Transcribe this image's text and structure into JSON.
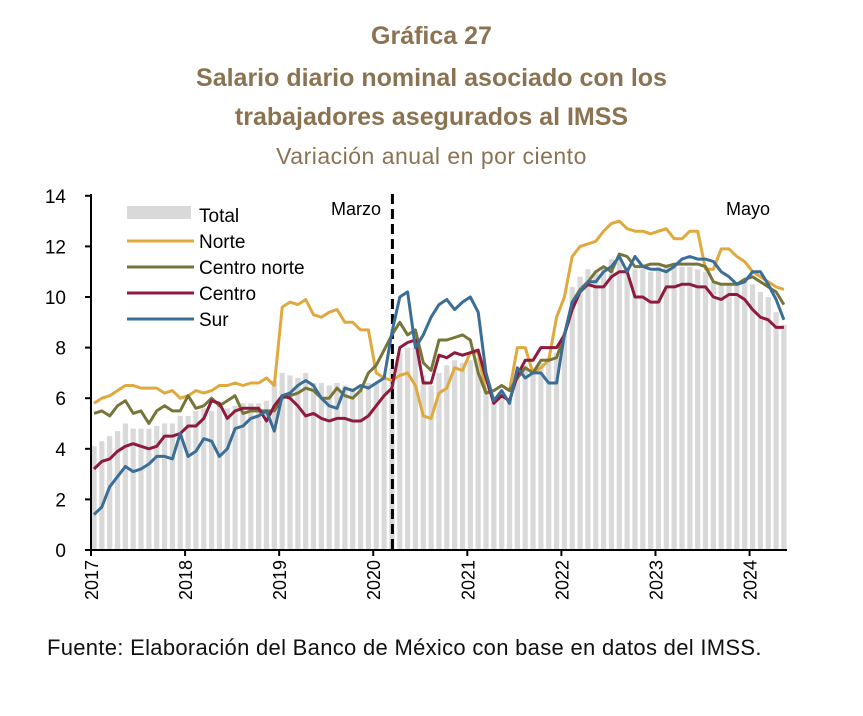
{
  "title": "Gráfica 27",
  "subtitle_line1": "Salario diario nominal asociado con los",
  "subtitle_line2": "trabajadores asegurados al IMSS",
  "units": "Variación anual en por ciento",
  "footer": "Fuente: Elaboración del Banco de México con base en datos del IMSS.",
  "colors": {
    "title": "#8b7352",
    "Total": "#d9d9d9",
    "Norte": "#e0a93d",
    "Centro norte": "#76763a",
    "Centro": "#8e1b3e",
    "Sur": "#3a6e96"
  },
  "chart_data": {
    "type": "bar+line",
    "title": "Salario diario nominal asociado con los trabajadores asegurados al IMSS",
    "subtitle": "Variación anual en por ciento",
    "xlabel": "",
    "ylabel": "",
    "ylim": [
      0,
      14
    ],
    "yticks": [
      0,
      2,
      4,
      6,
      8,
      10,
      12,
      14
    ],
    "xticks": [
      "2017",
      "2018",
      "2019",
      "2020",
      "2021",
      "2022",
      "2023",
      "2024"
    ],
    "x_start": "2017-01",
    "x_end": "2024-05",
    "frequency": "monthly",
    "legend": [
      "Total",
      "Norte",
      "Centro norte",
      "Centro",
      "Sur"
    ],
    "legend_position": "top-left",
    "annotations": [
      {
        "text": "Marzo",
        "at": "2020-03",
        "style": "dashed-vertical-line"
      },
      {
        "text": "Mayo",
        "at": "2024-05"
      }
    ],
    "series": [
      {
        "name": "Total",
        "type": "bar",
        "values": [
          4.1,
          4.3,
          4.5,
          4.7,
          5.0,
          4.8,
          4.8,
          4.8,
          4.9,
          5.0,
          5.0,
          5.3,
          5.3,
          5.5,
          5.6,
          5.5,
          5.7,
          5.6,
          5.7,
          5.8,
          5.8,
          5.8,
          5.9,
          6.7,
          7.0,
          6.9,
          6.8,
          7.0,
          6.6,
          6.6,
          6.5,
          6.6,
          6.5,
          6.4,
          6.4,
          6.6,
          6.6,
          6.9,
          7.2,
          7.8,
          8.0,
          8.0,
          6.9,
          6.5,
          7.0,
          7.3,
          7.5,
          7.4,
          7.5,
          7.6,
          6.4,
          6.0,
          6.2,
          6.0,
          7.0,
          7.3,
          7.2,
          7.4,
          7.6,
          7.8,
          8.6,
          10.4,
          10.8,
          11.1,
          11.0,
          11.2,
          11.5,
          11.6,
          11.2,
          11.1,
          11.1,
          11.0,
          11.2,
          11.3,
          11.2,
          11.2,
          11.2,
          11.1,
          11.0,
          10.6,
          10.5,
          10.5,
          10.6,
          10.7,
          10.5,
          10.2,
          10.0,
          9.4,
          8.9
        ]
      },
      {
        "name": "Norte",
        "type": "line",
        "values": [
          5.8,
          6.0,
          6.1,
          6.3,
          6.5,
          6.5,
          6.4,
          6.4,
          6.4,
          6.2,
          6.3,
          6.0,
          6.1,
          6.3,
          6.2,
          6.3,
          6.5,
          6.5,
          6.6,
          6.5,
          6.6,
          6.6,
          6.8,
          6.5,
          9.6,
          9.8,
          9.7,
          9.9,
          9.3,
          9.2,
          9.4,
          9.5,
          9.0,
          9.0,
          8.7,
          8.7,
          7.0,
          6.8,
          6.7,
          6.9,
          7.0,
          6.5,
          5.3,
          5.2,
          6.2,
          6.4,
          7.2,
          7.1,
          7.8,
          7.8,
          6.2,
          6.3,
          6.5,
          6.3,
          8.0,
          8.0,
          7.0,
          7.2,
          7.5,
          9.2,
          10.0,
          11.6,
          12.0,
          12.1,
          12.2,
          12.6,
          12.9,
          13.0,
          12.7,
          12.6,
          12.6,
          12.5,
          12.6,
          12.7,
          12.3,
          12.3,
          12.6,
          12.6,
          11.1,
          11.1,
          11.9,
          11.9,
          11.6,
          11.4,
          11.0,
          10.8,
          10.6,
          10.4,
          10.3
        ]
      },
      {
        "name": "Centro norte",
        "type": "line",
        "values": [
          5.4,
          5.5,
          5.3,
          5.7,
          5.9,
          5.4,
          5.5,
          5.0,
          5.5,
          5.7,
          5.5,
          5.5,
          6.1,
          5.6,
          5.7,
          6.0,
          5.7,
          5.9,
          6.1,
          5.4,
          5.5,
          5.5,
          5.5,
          5.5,
          6.0,
          6.1,
          6.2,
          6.4,
          6.3,
          6.0,
          6.0,
          6.4,
          6.1,
          6.0,
          6.3,
          7.0,
          7.3,
          7.9,
          8.5,
          9.0,
          8.5,
          8.7,
          7.4,
          7.1,
          8.3,
          8.3,
          8.4,
          8.5,
          8.3,
          7.0,
          6.2,
          6.3,
          6.5,
          6.3,
          6.8,
          7.2,
          7.0,
          7.5,
          7.5,
          7.6,
          8.5,
          9.8,
          10.3,
          10.6,
          11.0,
          11.2,
          11.0,
          11.7,
          11.6,
          11.2,
          11.2,
          11.3,
          11.3,
          11.2,
          11.3,
          11.3,
          11.3,
          11.3,
          11.2,
          10.6,
          10.5,
          10.5,
          10.5,
          10.7,
          10.8,
          10.6,
          10.4,
          10.2,
          9.7
        ]
      },
      {
        "name": "Centro",
        "type": "line",
        "values": [
          3.2,
          3.5,
          3.6,
          3.9,
          4.1,
          4.2,
          4.1,
          4.0,
          4.1,
          4.5,
          4.5,
          4.6,
          4.9,
          4.9,
          5.2,
          5.9,
          5.8,
          5.2,
          5.5,
          5.6,
          5.6,
          5.6,
          5.1,
          5.7,
          6.1,
          6.0,
          5.7,
          5.3,
          5.4,
          5.2,
          5.1,
          5.2,
          5.2,
          5.1,
          5.1,
          5.3,
          5.7,
          6.1,
          6.4,
          8.0,
          8.2,
          8.3,
          6.6,
          6.6,
          7.7,
          7.6,
          7.8,
          7.7,
          7.8,
          7.9,
          6.8,
          5.8,
          6.1,
          5.9,
          6.9,
          7.5,
          7.5,
          8.0,
          8.0,
          8.0,
          8.5,
          9.5,
          10.2,
          10.5,
          10.4,
          10.4,
          10.8,
          11.0,
          11.0,
          10.0,
          10.0,
          9.8,
          9.8,
          10.4,
          10.4,
          10.5,
          10.5,
          10.4,
          10.4,
          10.0,
          9.9,
          10.1,
          10.1,
          9.9,
          9.5,
          9.2,
          9.1,
          8.8,
          8.8
        ]
      },
      {
        "name": "Sur",
        "type": "line",
        "values": [
          1.4,
          1.7,
          2.5,
          2.9,
          3.3,
          3.1,
          3.2,
          3.4,
          3.7,
          3.7,
          3.6,
          4.6,
          3.7,
          3.9,
          4.4,
          4.3,
          3.7,
          4.0,
          4.8,
          4.9,
          5.2,
          5.3,
          5.5,
          4.7,
          6.1,
          6.2,
          6.5,
          6.7,
          6.5,
          6.0,
          5.7,
          5.6,
          6.4,
          6.3,
          6.5,
          6.4,
          6.6,
          6.8,
          8.6,
          10.0,
          10.2,
          8.0,
          8.5,
          9.2,
          9.7,
          9.9,
          9.5,
          9.8,
          10.0,
          9.4,
          7.0,
          5.9,
          6.3,
          5.8,
          7.2,
          6.8,
          7.0,
          7.0,
          6.6,
          6.6,
          8.5,
          9.8,
          10.2,
          10.6,
          10.6,
          11.0,
          11.2,
          11.6,
          11.0,
          11.6,
          11.2,
          11.1,
          11.1,
          11.0,
          11.2,
          11.5,
          11.6,
          11.5,
          11.5,
          11.4,
          11.0,
          10.8,
          10.5,
          10.6,
          11.0,
          11.0,
          10.5,
          9.9,
          9.1
        ]
      }
    ]
  }
}
